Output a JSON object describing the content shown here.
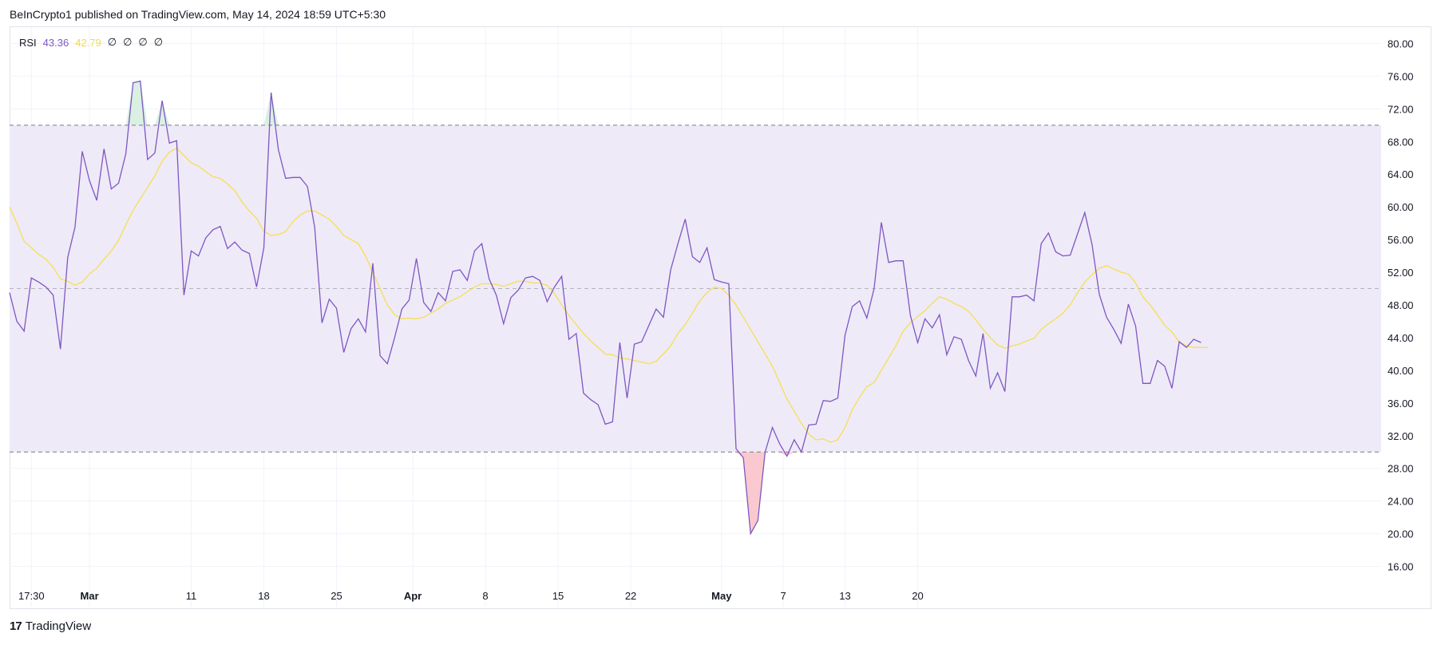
{
  "header": {
    "attribution": "BeInCrypto1 published on TradingView.com, May 14, 2024 18:59 UTC+5:30"
  },
  "legend": {
    "name": "RSI",
    "rsi_value": "43.36",
    "ma_value": "42.79",
    "na_values": [
      "∅",
      "∅",
      "∅",
      "∅"
    ]
  },
  "footer": {
    "logo_mark": "17",
    "brand": "TradingView"
  },
  "colors": {
    "rsi_line": "#7e57c2",
    "ma_line": "#f5e05c",
    "band_fill": "#efeaf8",
    "overbought_fill": "#d9f0e3",
    "oversold_fill": "#f9c9cf",
    "level_line": "#787b86",
    "grid": "#f0f3fa"
  },
  "chart_data": {
    "type": "line",
    "title": "RSI",
    "ylim": [
      14,
      82
    ],
    "y_ticks": [
      16,
      20,
      24,
      28,
      32,
      36,
      40,
      44,
      48,
      52,
      56,
      60,
      64,
      68,
      72,
      76,
      80
    ],
    "y_tick_labels": [
      "16.00",
      "20.00",
      "24.00",
      "28.00",
      "32.00",
      "36.00",
      "40.00",
      "44.00",
      "48.00",
      "52.00",
      "56.00",
      "60.00",
      "64.00",
      "68.00",
      "72.00",
      "76.00",
      "80.00"
    ],
    "x_ticks": [
      {
        "label": "17:30",
        "index": 3,
        "bold": false
      },
      {
        "label": "Mar",
        "index": 11,
        "bold": true
      },
      {
        "label": "11",
        "index": 25,
        "bold": false
      },
      {
        "label": "18",
        "index": 35,
        "bold": false
      },
      {
        "label": "25",
        "index": 45,
        "bold": false
      },
      {
        "label": "Apr",
        "index": 55.5,
        "bold": true
      },
      {
        "label": "8",
        "index": 65.5,
        "bold": false
      },
      {
        "label": "15",
        "index": 75.5,
        "bold": false
      },
      {
        "label": "22",
        "index": 85.5,
        "bold": false
      },
      {
        "label": "May",
        "index": 98,
        "bold": true
      },
      {
        "label": "7",
        "index": 106.5,
        "bold": false
      },
      {
        "label": "13",
        "index": 115,
        "bold": false
      },
      {
        "label": "20",
        "index": 125,
        "bold": false
      }
    ],
    "levels": {
      "upper": 70,
      "middle": 50,
      "lower": 30
    },
    "x_range": [
      0,
      130
    ],
    "grid": true,
    "series": [
      {
        "name": "RSI",
        "values": [
          49.5,
          46,
          44.8,
          51.3,
          50.8,
          50.2,
          49.2,
          42.6,
          53.8,
          57.5,
          66.8,
          63.2,
          60.8,
          67.1,
          62.2,
          62.9,
          66.5,
          75.2,
          75.4,
          65.8,
          66.6,
          73,
          67.8,
          68.1,
          49.2,
          54.6,
          54,
          56.2,
          57.2,
          57.6,
          54.9,
          55.7,
          54.7,
          54.3,
          50.2,
          55,
          74,
          67,
          63.5,
          63.6,
          63.6,
          62.5,
          57.5,
          45.8,
          48.7,
          47.6,
          42.2,
          45.1,
          46.3,
          44.7,
          53.1,
          41.8,
          40.8,
          44,
          47.5,
          48.6,
          53.7,
          48.3,
          47.2,
          49.5,
          48.5,
          52.1,
          52.3,
          51,
          54.6,
          55.5,
          51.2,
          49.2,
          45.7,
          48.9,
          49.8,
          51.3,
          51.5,
          51,
          48.4,
          50.2,
          51.5,
          43.8,
          44.5,
          37.2,
          36.4,
          35.8,
          33.4,
          33.7,
          43.4,
          36.6,
          43.2,
          43.5,
          45.5,
          47.5,
          46.5,
          52.3,
          55.5,
          58.5,
          53.9,
          53.2,
          55,
          51.1,
          50.8,
          50.6,
          30.4,
          29.3,
          20,
          21.6,
          30,
          33,
          31,
          29.5,
          31.5,
          30,
          33.3,
          33.4,
          36.3,
          36.2,
          36.6,
          44.3,
          47.8,
          48.5,
          46.4,
          50,
          58.1,
          53.2,
          53.4,
          53.4,
          46.7,
          43.4,
          46.3,
          45.2,
          46.8,
          41.9,
          44.1,
          43.8,
          41.2,
          39.3,
          44.5,
          37.8,
          39.7,
          37.4,
          49,
          49,
          49.2,
          48.5,
          55.5,
          56.8,
          54.5,
          54,
          54.1,
          56.7,
          59.3,
          55.4,
          49.3,
          46.5,
          45,
          43.3,
          48.1,
          45.4,
          38.4,
          38.4,
          41.2,
          40.5,
          37.8,
          43.5,
          42.8,
          43.8,
          43.4
        ]
      },
      {
        "name": "RSI-based MA",
        "values": [
          60,
          58,
          55.8,
          55,
          54.2,
          53.6,
          52.6,
          51.2,
          50.9,
          50.4,
          50.8,
          51.8,
          52.5,
          53.6,
          54.6,
          55.9,
          57.8,
          59.6,
          61,
          62.4,
          63.8,
          65.6,
          66.7,
          67.2,
          66.3,
          65.4,
          65,
          64.3,
          63.7,
          63.5,
          62.8,
          62,
          60.6,
          59.5,
          58.6,
          57,
          56.5,
          56.6,
          57,
          58.2,
          59,
          59.5,
          59.5,
          59,
          58.5,
          57.6,
          56.5,
          56,
          55.5,
          54,
          52,
          50,
          48,
          46.8,
          46.3,
          46.4,
          46.3,
          46.5,
          47,
          47.5,
          48.2,
          48.6,
          49,
          49.6,
          50.2,
          50.6,
          50.6,
          50.5,
          50.3,
          50.6,
          50.9,
          50.9,
          50.7,
          50.7,
          50.4,
          49.4,
          48,
          46.7,
          45.6,
          44.5,
          43.6,
          42.8,
          42,
          41.9,
          41.5,
          41.4,
          41.2,
          41,
          40.8,
          41.1,
          42,
          43,
          44.5,
          45.6,
          47,
          48.5,
          49.5,
          50.2,
          50,
          49.2,
          48,
          46.5,
          45,
          43.5,
          42,
          40.5,
          38.5,
          36.5,
          35,
          33.5,
          32.2,
          31.5,
          31.6,
          31.2,
          31.5,
          33,
          35.2,
          36.7,
          38,
          38.5,
          40,
          41.5,
          43,
          44.8,
          45.8,
          46.6,
          47.3,
          48.2,
          49,
          48.7,
          48.2,
          47.8,
          47.2,
          46.2,
          45,
          44,
          43.1,
          42.7,
          43,
          43.2,
          43.6,
          43.9,
          45,
          45.7,
          46.3,
          47,
          48,
          49.5,
          50.8,
          51.7,
          52.5,
          52.8,
          52.4,
          52,
          51.8,
          50.7,
          49,
          48,
          46.8,
          45.5,
          44.7,
          43.5,
          43,
          42.8,
          42.8,
          42.79
        ]
      }
    ]
  }
}
